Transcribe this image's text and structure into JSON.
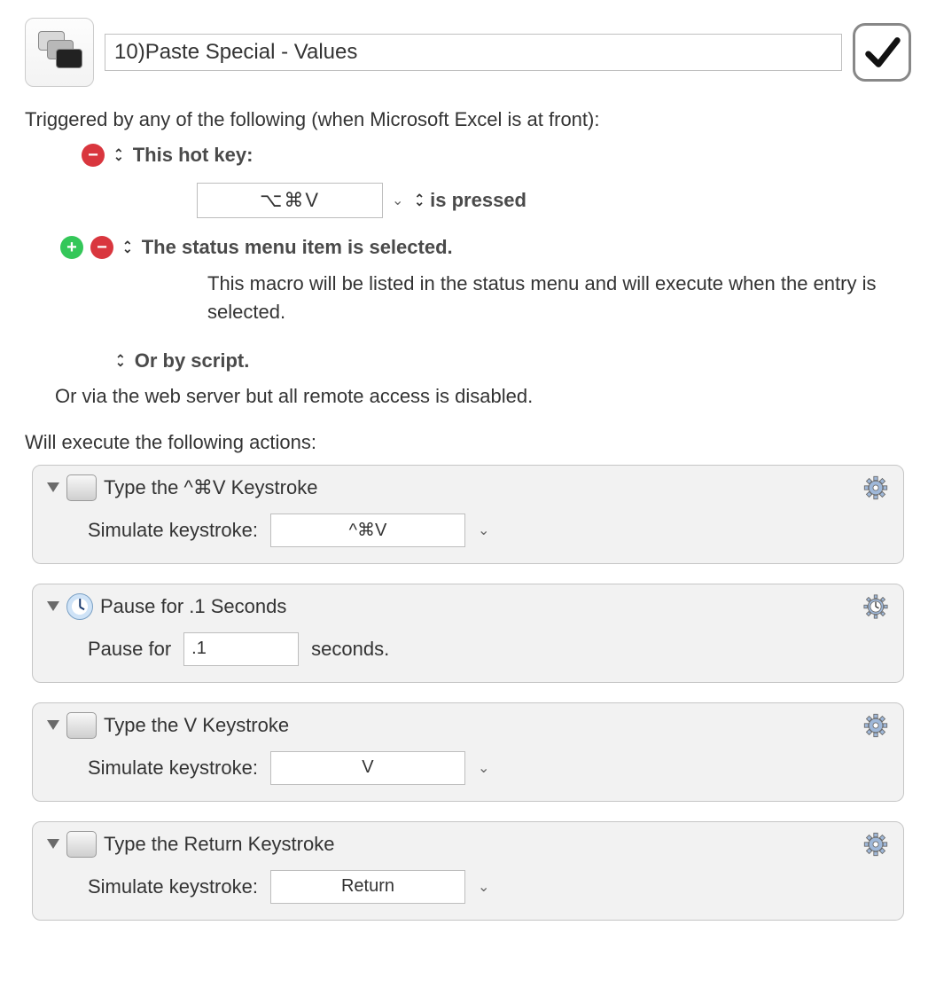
{
  "header": {
    "title": "10)Paste Special - Values",
    "enabled": true
  },
  "triggers": {
    "intro": "Triggered by any of the following (when Microsoft Excel is at front):",
    "hotkey": {
      "label": "This hot key:",
      "keys": "⌥⌘V",
      "mode_label": "is pressed"
    },
    "status_menu": {
      "label": "The status menu item is selected.",
      "description": "This macro will be listed in the status menu and will execute when the entry is selected."
    },
    "or_script": "Or by script.",
    "or_web": "Or via the web server but all remote access is disabled."
  },
  "exec_label": "Will execute the following actions:",
  "actions": [
    {
      "icon": "key",
      "title": "Type the ^⌘V Keystroke",
      "body_label": "Simulate keystroke:",
      "value": "^⌘V",
      "has_dropdown": true,
      "gear": "gear"
    },
    {
      "icon": "clock",
      "title": "Pause for .1 Seconds",
      "body_label": "Pause for",
      "value": ".1",
      "suffix": "seconds.",
      "has_dropdown": false,
      "gear": "clock-gear"
    },
    {
      "icon": "key",
      "title": "Type the V Keystroke",
      "body_label": "Simulate keystroke:",
      "value": "V",
      "has_dropdown": true,
      "gear": "gear"
    },
    {
      "icon": "key",
      "title": "Type the Return Keystroke",
      "body_label": "Simulate keystroke:",
      "value": "Return",
      "has_dropdown": true,
      "gear": "gear"
    }
  ],
  "colors": {
    "card_bg": "#f2f2f2",
    "border": "#c6c6c6",
    "remove_btn": "#d9363e",
    "add_btn": "#34c759",
    "gear_fill": "#9fb8d9",
    "gear_stroke": "#6a6a6a"
  }
}
